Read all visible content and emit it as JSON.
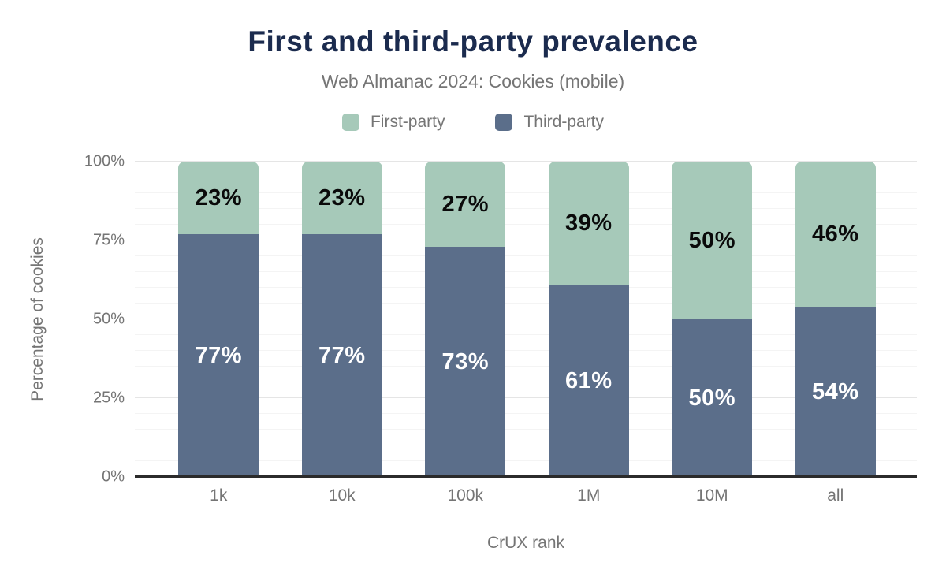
{
  "header": {
    "title": "First and third-party prevalence",
    "subtitle": "Web Almanac 2024: Cookies (mobile)"
  },
  "chart_data": {
    "type": "bar",
    "stacked": true,
    "title": "First and third-party prevalence",
    "subtitle": "Web Almanac 2024: Cookies (mobile)",
    "xlabel": "CrUX rank",
    "ylabel": "Percentage of cookies",
    "categories": [
      "1k",
      "10k",
      "100k",
      "1M",
      "10M",
      "all"
    ],
    "series": [
      {
        "name": "First-party",
        "color": "#a6c9b9",
        "label_color": "#0a0a0a",
        "values": [
          23,
          23,
          27,
          39,
          50,
          46
        ]
      },
      {
        "name": "Third-party",
        "color": "#5b6e8a",
        "label_color": "#ffffff",
        "values": [
          77,
          77,
          73,
          61,
          50,
          54
        ]
      }
    ],
    "ylim": [
      0,
      100
    ],
    "yticks": [
      0,
      25,
      50,
      75,
      100
    ],
    "ytick_format": "{}%",
    "value_label_format": "{}%",
    "grid": "horizontal, minor every 5, major every 25",
    "legend_position": "top"
  },
  "style_colors": {
    "title_navy": "#1b2b4e",
    "muted_text": "#757575",
    "axis_line": "#2b2b2b",
    "gridline_major": "#e5e5e5",
    "gridline_minor": "#f4f4f4",
    "background": "#ffffff"
  }
}
